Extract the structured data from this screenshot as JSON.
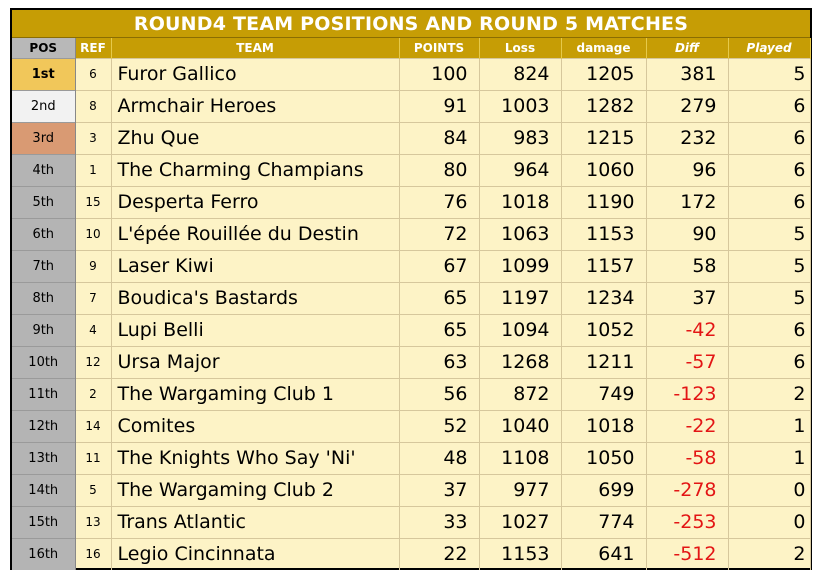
{
  "title": "ROUND4 TEAM POSITIONS AND ROUND 5 MATCHES",
  "headers": {
    "pos": "POS",
    "ref": "REF",
    "team": "TEAM",
    "points": "POINTS",
    "loss": "Loss",
    "damage": "damage",
    "diff": "Diff",
    "played": "Played"
  },
  "colors": {
    "header_bg": "#c69d05",
    "row_bg": "#fdf3c6",
    "pos_bg": "#b4b4b4",
    "first_bg": "#f1c75a",
    "second_bg": "#f2f2f2",
    "third_bg": "#d99a73",
    "negative_text": "#e31515"
  },
  "rows": [
    {
      "pos": "1st",
      "ref": "6",
      "team": "Furor Gallico",
      "points": "100",
      "loss": "824",
      "damage": "1205",
      "diff": "381",
      "played": "5"
    },
    {
      "pos": "2nd",
      "ref": "8",
      "team": "Armchair Heroes",
      "points": "91",
      "loss": "1003",
      "damage": "1282",
      "diff": "279",
      "played": "6"
    },
    {
      "pos": "3rd",
      "ref": "3",
      "team": "Zhu Que",
      "points": "84",
      "loss": "983",
      "damage": "1215",
      "diff": "232",
      "played": "6"
    },
    {
      "pos": "4th",
      "ref": "1",
      "team": "The Charming Champians",
      "points": "80",
      "loss": "964",
      "damage": "1060",
      "diff": "96",
      "played": "6"
    },
    {
      "pos": "5th",
      "ref": "15",
      "team": "Desperta Ferro",
      "points": "76",
      "loss": "1018",
      "damage": "1190",
      "diff": "172",
      "played": "6"
    },
    {
      "pos": "6th",
      "ref": "10",
      "team": "L'épée Rouillée du Destin",
      "points": "72",
      "loss": "1063",
      "damage": "1153",
      "diff": "90",
      "played": "5"
    },
    {
      "pos": "7th",
      "ref": "9",
      "team": "Laser Kiwi",
      "points": "67",
      "loss": "1099",
      "damage": "1157",
      "diff": "58",
      "played": "5"
    },
    {
      "pos": "8th",
      "ref": "7",
      "team": "Boudica's Bastards",
      "points": "65",
      "loss": "1197",
      "damage": "1234",
      "diff": "37",
      "played": "5"
    },
    {
      "pos": "9th",
      "ref": "4",
      "team": "Lupi Belli",
      "points": "65",
      "loss": "1094",
      "damage": "1052",
      "diff": "-42",
      "played": "6"
    },
    {
      "pos": "10th",
      "ref": "12",
      "team": "Ursa Major",
      "points": "63",
      "loss": "1268",
      "damage": "1211",
      "diff": "-57",
      "played": "6"
    },
    {
      "pos": "11th",
      "ref": "2",
      "team": "The Wargaming Club 1",
      "points": "56",
      "loss": "872",
      "damage": "749",
      "diff": "-123",
      "played": "2"
    },
    {
      "pos": "12th",
      "ref": "14",
      "team": "Comites",
      "points": "52",
      "loss": "1040",
      "damage": "1018",
      "diff": "-22",
      "played": "1"
    },
    {
      "pos": "13th",
      "ref": "11",
      "team": "The Knights Who Say 'Ni'",
      "points": "48",
      "loss": "1108",
      "damage": "1050",
      "diff": "-58",
      "played": "1"
    },
    {
      "pos": "14th",
      "ref": "5",
      "team": "The Wargaming Club 2",
      "points": "37",
      "loss": "977",
      "damage": "699",
      "diff": "-278",
      "played": "0"
    },
    {
      "pos": "15th",
      "ref": "13",
      "team": "Trans Atlantic",
      "points": "33",
      "loss": "1027",
      "damage": "774",
      "diff": "-253",
      "played": "0"
    },
    {
      "pos": "16th",
      "ref": "16",
      "team": "Legio Cincinnata",
      "points": "22",
      "loss": "1153",
      "damage": "641",
      "diff": "-512",
      "played": "2"
    }
  ]
}
